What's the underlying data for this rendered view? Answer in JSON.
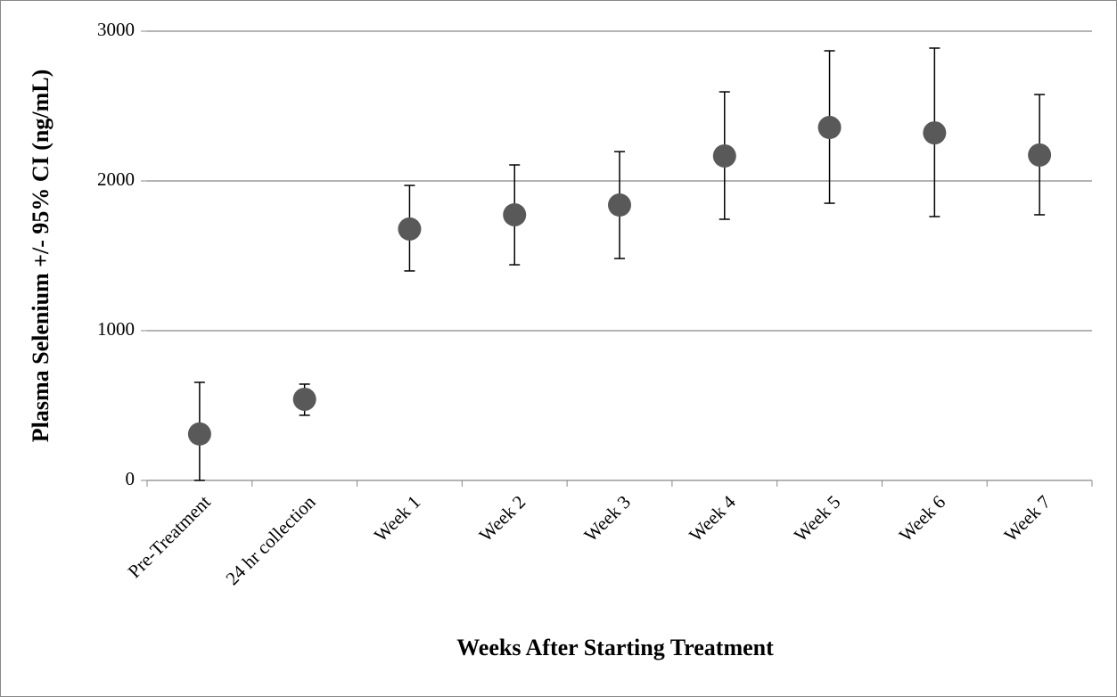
{
  "chart_data": {
    "type": "scatter",
    "x_label": "Weeks After Starting Treatment",
    "y_label": "Plasma Selenium +/- 95% CI (ng/mL)",
    "categories": [
      "Pre-Treatment",
      "24 hr collection",
      "Week 1",
      "Week 2",
      "Week 3",
      "Week 4",
      "Week 5",
      "Week 6",
      "Week 7"
    ],
    "values": [
      310,
      542,
      1679,
      1774,
      1839,
      2167,
      2357,
      2321,
      2173
    ],
    "ci_lower": [
      0,
      435,
      1399,
      1440,
      1482,
      1744,
      1851,
      1762,
      1774
    ],
    "ci_upper": [
      655,
      643,
      1970,
      2107,
      2196,
      2595,
      2869,
      2887,
      2577
    ],
    "color": "#595959",
    "ylim": [
      0,
      3000
    ],
    "yticks": [
      0,
      1000,
      2000,
      3000
    ],
    "grid": true
  }
}
